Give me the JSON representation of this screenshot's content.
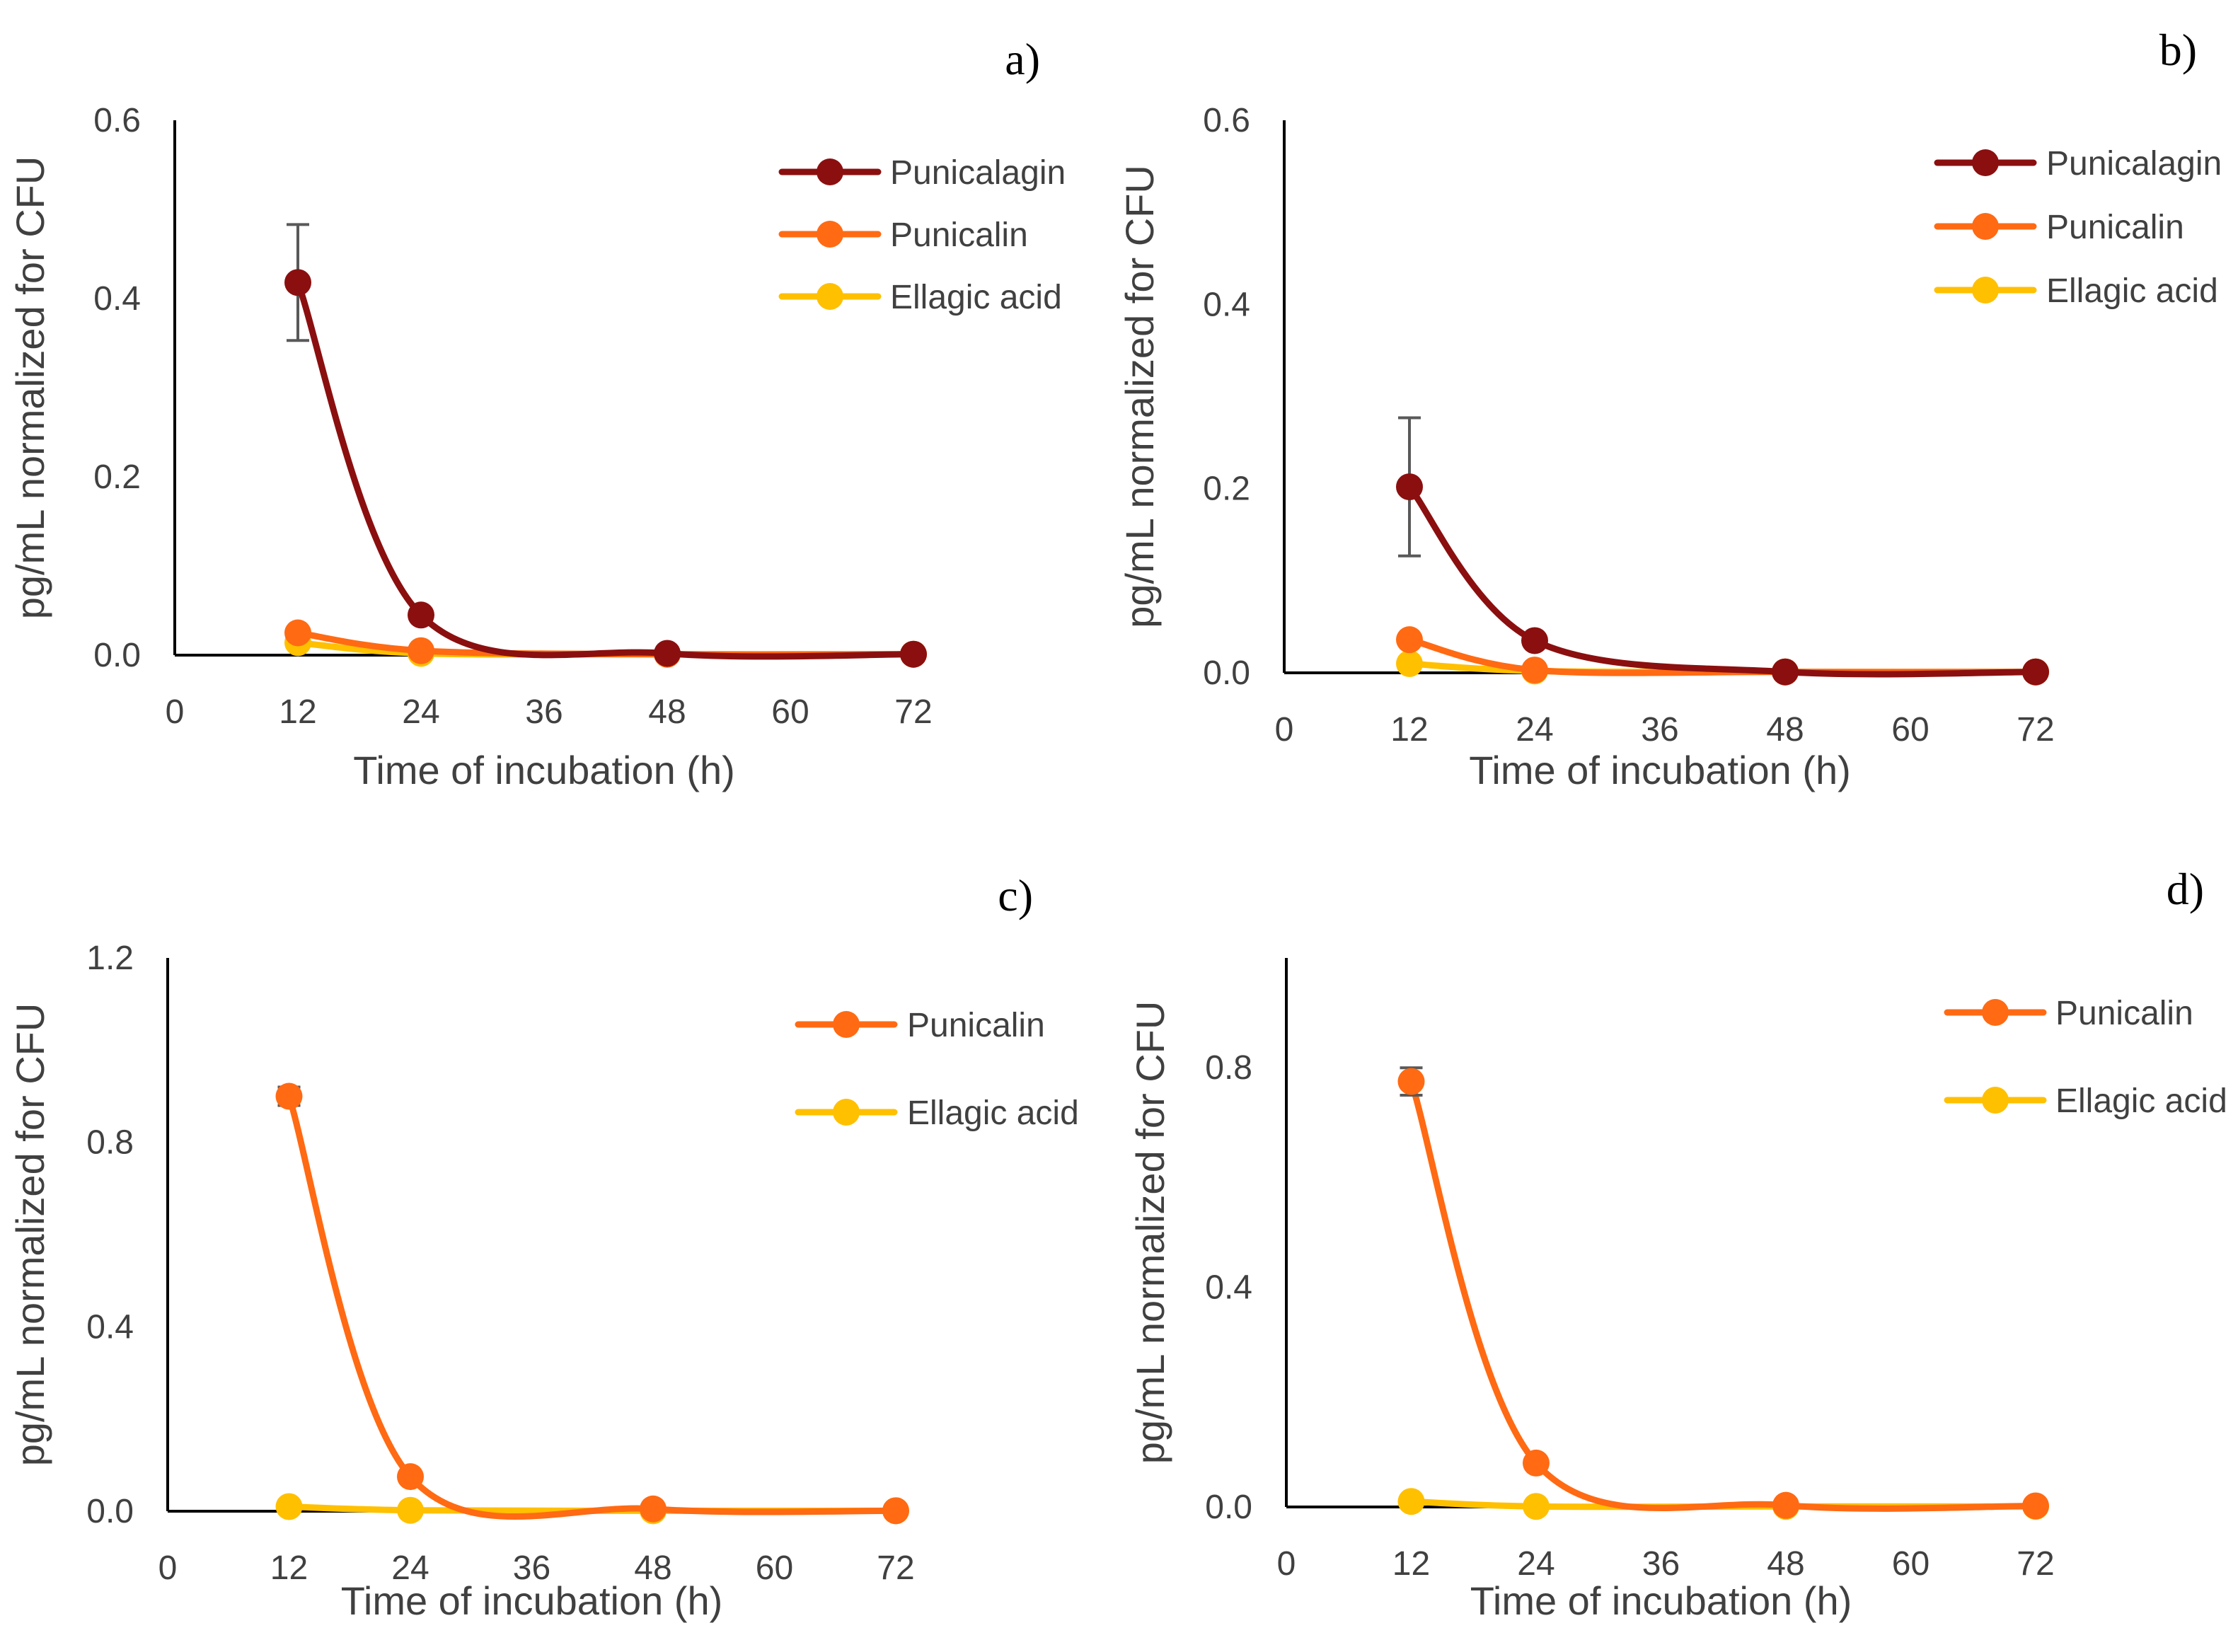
{
  "chart_data": [
    {
      "panel": "a)",
      "type": "line",
      "xlabel": "Time of incubation (h)",
      "ylabel": "pg/mL normalized for CFU",
      "xlim": [
        0,
        72
      ],
      "ylim": [
        0,
        0.6
      ],
      "x_ticks": [
        "0",
        "12",
        "24",
        "36",
        "48",
        "60",
        "72"
      ],
      "y_ticks": [
        "0.0",
        "0.2",
        "0.4",
        "0.6"
      ],
      "x": [
        12,
        24,
        48,
        72
      ],
      "series": [
        {
          "name": "Punicalagin",
          "color": "#8B0F0F",
          "values": [
            0.418,
            0.045,
            0.002,
            0.001
          ],
          "errors": [
            0.065,
            0,
            0,
            0
          ]
        },
        {
          "name": "Punicalin",
          "color": "#FF6A13",
          "values": [
            0.025,
            0.005,
            0.001,
            0.001
          ],
          "errors": [
            0,
            0,
            0,
            0
          ]
        },
        {
          "name": "Ellagic acid",
          "color": "#FFC000",
          "values": [
            0.014,
            0.002,
            0.001,
            0.001
          ],
          "errors": [
            0,
            0,
            0,
            0
          ]
        }
      ]
    },
    {
      "panel": "b)",
      "type": "line",
      "xlabel": "Time of incubation (h)",
      "ylabel": "pg/mL normalized for CFU",
      "xlim": [
        0,
        72
      ],
      "ylim": [
        0,
        0.6
      ],
      "x_ticks": [
        "0",
        "12",
        "24",
        "36",
        "48",
        "60",
        "72"
      ],
      "y_ticks": [
        "0.0",
        "0.2",
        "0.4",
        "0.6"
      ],
      "x": [
        12,
        24,
        48,
        72
      ],
      "series": [
        {
          "name": "Punicalagin",
          "color": "#8B0F0F",
          "values": [
            0.202,
            0.035,
            0.001,
            0.001
          ],
          "errors": [
            0.075,
            0,
            0,
            0
          ]
        },
        {
          "name": "Punicalin",
          "color": "#FF6A13",
          "values": [
            0.036,
            0.003,
            0.001,
            0.001
          ],
          "errors": [
            0,
            0,
            0,
            0
          ]
        },
        {
          "name": "Ellagic acid",
          "color": "#FFC000",
          "values": [
            0.01,
            0.002,
            0.001,
            0.001
          ],
          "errors": [
            0,
            0,
            0,
            0
          ]
        }
      ]
    },
    {
      "panel": "c)",
      "type": "line",
      "xlabel": "Time of incubation (h)",
      "ylabel": "pg/mL normalized for CFU",
      "xlim": [
        0,
        72
      ],
      "ylim": [
        0,
        1.2
      ],
      "x_ticks": [
        "0",
        "12",
        "24",
        "36",
        "48",
        "60",
        "72"
      ],
      "y_ticks": [
        "0.0",
        "0.4",
        "0.8",
        "1.2"
      ],
      "x": [
        12,
        24,
        48,
        72
      ],
      "series": [
        {
          "name": "Punicalin",
          "color": "#FF6A13",
          "values": [
            0.9,
            0.075,
            0.005,
            0.001
          ],
          "errors": [
            0.02,
            0,
            0,
            0
          ]
        },
        {
          "name": "Ellagic acid",
          "color": "#FFC000",
          "values": [
            0.01,
            0.002,
            0.001,
            0.001
          ],
          "errors": [
            0,
            0,
            0,
            0
          ]
        }
      ]
    },
    {
      "panel": "d)",
      "type": "line",
      "xlabel": "Time of incubation (h)",
      "ylabel": "pg/mL normalized for CFU",
      "xlim": [
        0,
        72
      ],
      "ylim": [
        0,
        1.0
      ],
      "x_ticks": [
        "0",
        "12",
        "24",
        "36",
        "48",
        "60",
        "72"
      ],
      "y_ticks": [
        "0.0",
        "0.4",
        "0.8"
      ],
      "x": [
        12,
        24,
        48,
        72
      ],
      "series": [
        {
          "name": "Punicalin",
          "color": "#FF6A13",
          "values": [
            0.775,
            0.08,
            0.003,
            0.002
          ],
          "errors": [
            0.025,
            0,
            0,
            0
          ]
        },
        {
          "name": "Ellagic acid",
          "color": "#FFC000",
          "values": [
            0.01,
            0.001,
            0.001,
            0.001
          ],
          "errors": [
            0,
            0,
            0,
            0
          ]
        }
      ]
    }
  ]
}
